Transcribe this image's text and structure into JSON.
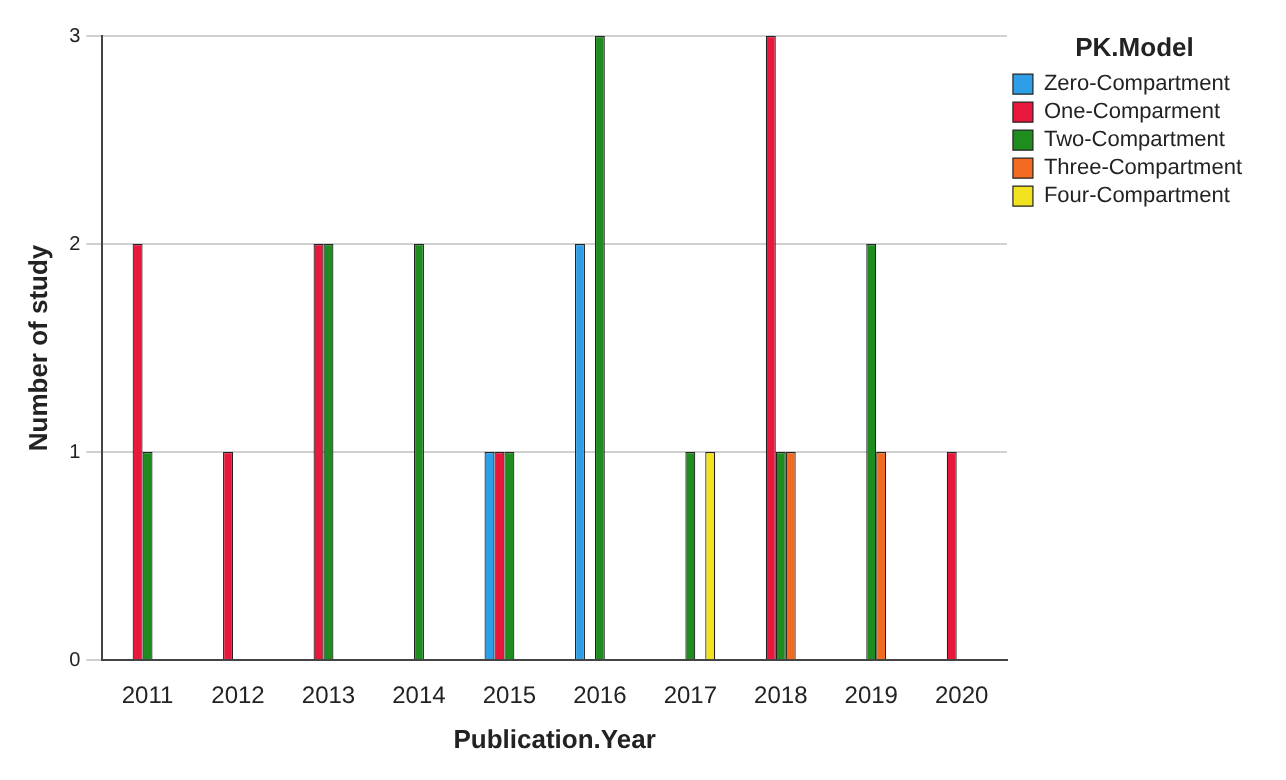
{
  "chart_data": {
    "type": "bar",
    "xlabel": "Publication.Year",
    "ylabel": "Number of study",
    "legend_title": "PK.Model",
    "categories": [
      "2011",
      "2012",
      "2013",
      "2014",
      "2015",
      "2016",
      "2017",
      "2018",
      "2019",
      "2020"
    ],
    "series": [
      {
        "name": "Zero-Compartment",
        "color": "#2e9fe6",
        "values": [
          null,
          null,
          null,
          null,
          1,
          2,
          null,
          null,
          null,
          null
        ]
      },
      {
        "name": "One-Comparment",
        "color": "#e8173c",
        "values": [
          2,
          1,
          2,
          null,
          1,
          null,
          null,
          3,
          null,
          1
        ]
      },
      {
        "name": "Two-Compartment",
        "color": "#1e8c1e",
        "values": [
          1,
          null,
          2,
          2,
          1,
          3,
          1,
          1,
          2,
          null
        ]
      },
      {
        "name": "Three-Compartment",
        "color": "#f26b21",
        "values": [
          null,
          null,
          null,
          null,
          null,
          null,
          null,
          1,
          1,
          null
        ]
      },
      {
        "name": "Four-Compartment",
        "color": "#f2e21f",
        "values": [
          null,
          null,
          null,
          null,
          null,
          null,
          1,
          null,
          null,
          null
        ]
      }
    ],
    "ylim": [
      0,
      3
    ],
    "yticks": [
      0,
      1,
      2,
      3
    ],
    "grid": "y",
    "legend": "top right"
  }
}
